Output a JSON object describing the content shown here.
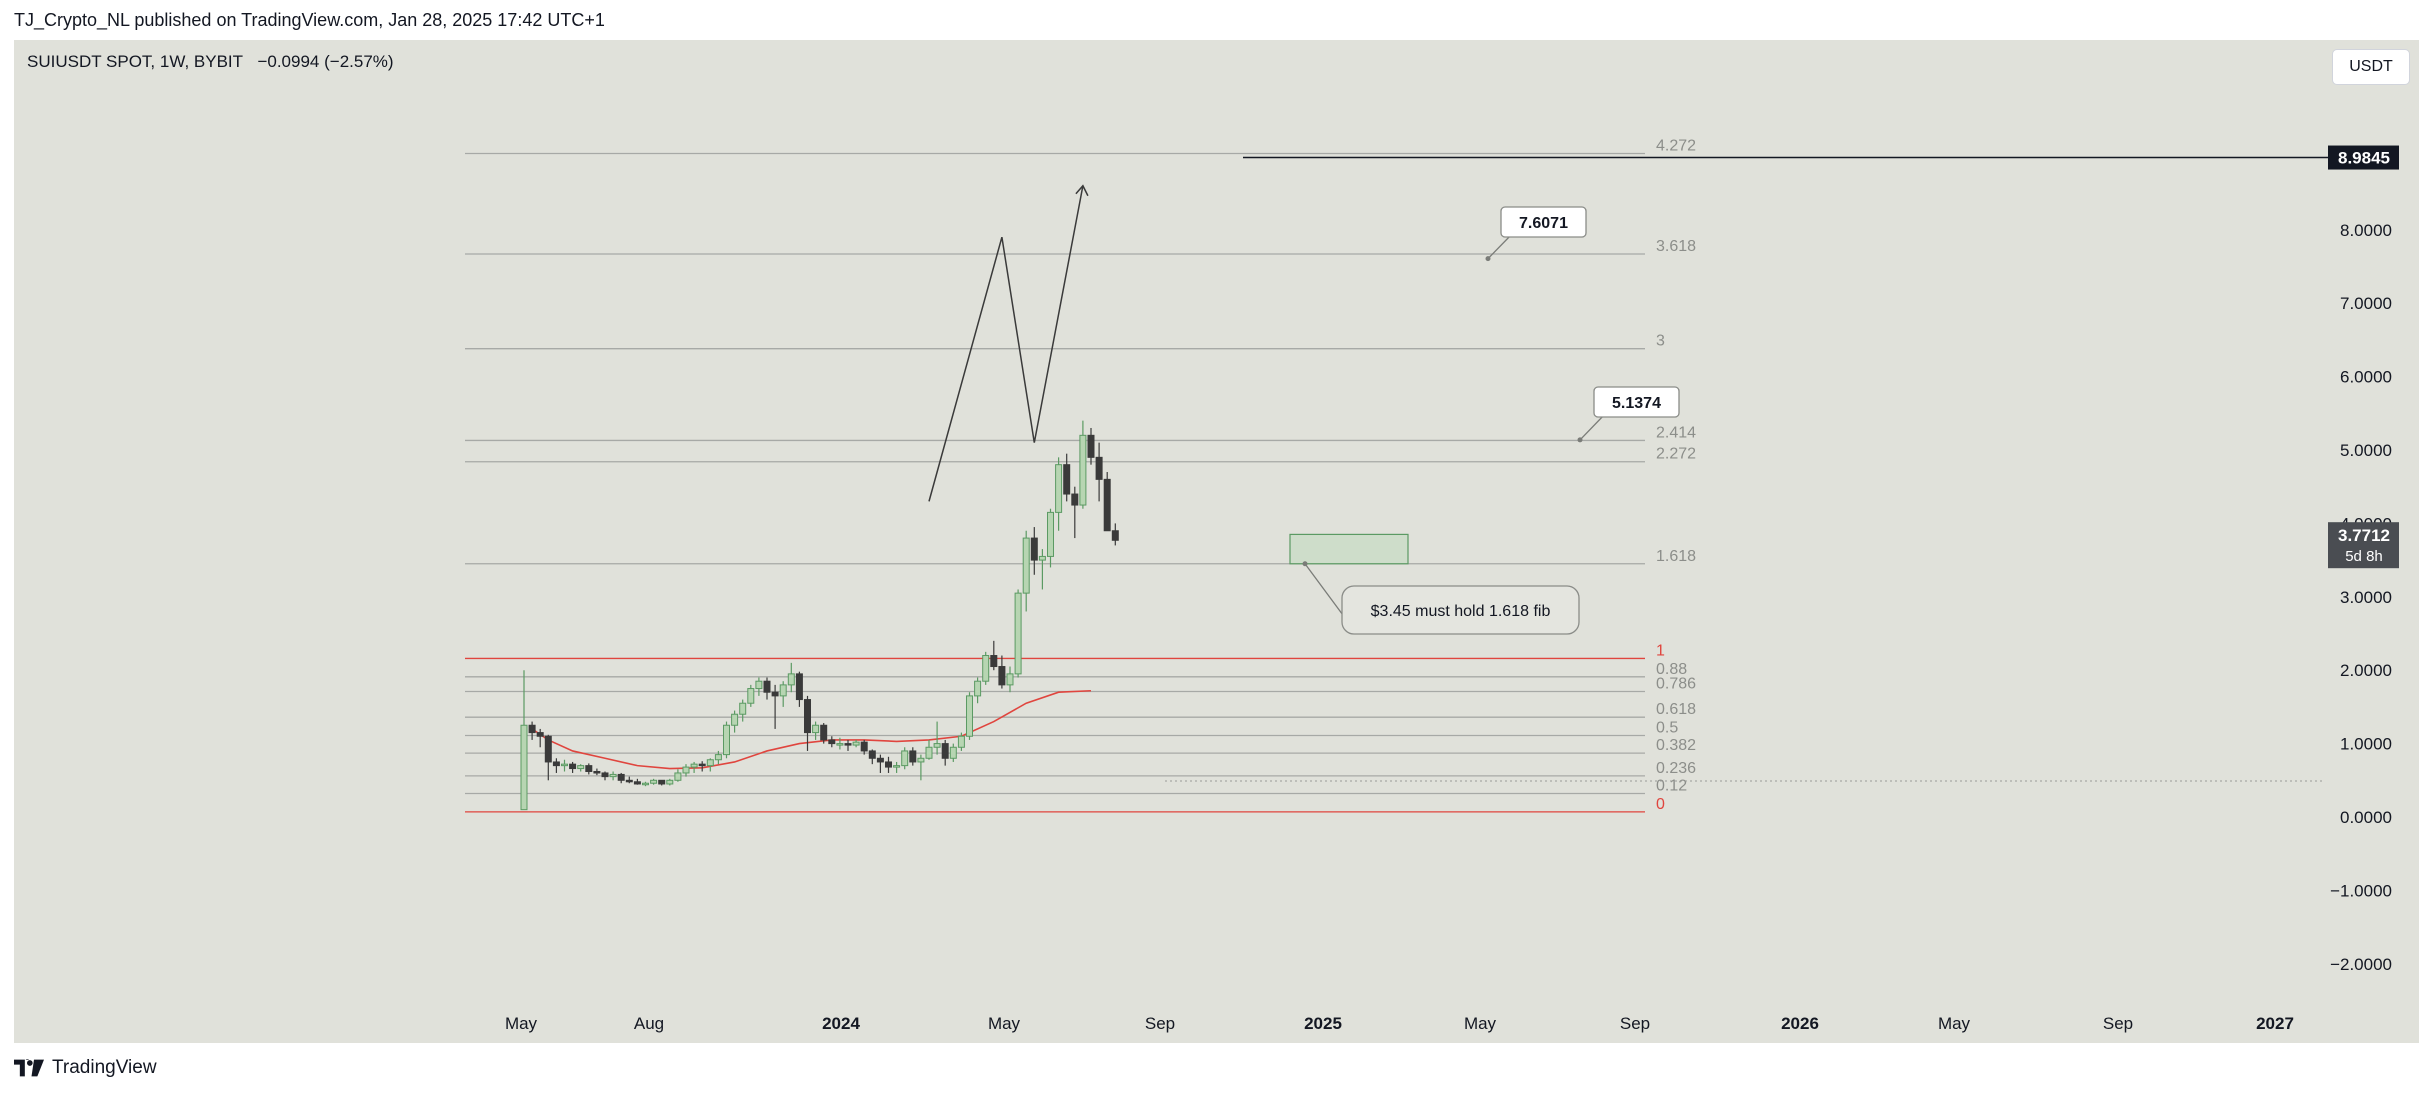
{
  "header": {
    "text": "TJ_Crypto_NL published on TradingView.com, Jan 28, 2025 17:42 UTC+1"
  },
  "symbol": {
    "label": "SUIUSDT SPOT, 1W, BYBIT",
    "change": "−0.0994 (−2.57%)"
  },
  "currency_button": "USDT",
  "footer": {
    "brand": "TradingView"
  },
  "colors": {
    "up": "#5b9a63",
    "up_fill": "#b7d5b2",
    "down": "#3a3a3a",
    "down_fill": "#3a3a3a",
    "ma": "#e0453e",
    "fib": "#a7a9a6",
    "fib_red": "#e0453e",
    "background": "#e0e1da"
  },
  "chart_data": {
    "type": "candlestick",
    "title": "SUIUSDT SPOT, 1W, BYBIT",
    "ylim": [
      -2.5,
      10.5
    ],
    "y_ticks": [
      "8.0000",
      "7.0000",
      "6.0000",
      "5.0000",
      "4.0000",
      "3.0000",
      "2.0000",
      "1.0000",
      "0.0000",
      "−1.0000",
      "−2.0000"
    ],
    "x_ticks": [
      "May",
      "Aug",
      "2024",
      "May",
      "Sep",
      "2025",
      "May",
      "Sep",
      "2026",
      "May",
      "Sep",
      "2027"
    ],
    "fib_levels": [
      {
        "label": "4.272",
        "value": 9.04
      },
      {
        "label": "3.618",
        "value": 7.67
      },
      {
        "label": "3",
        "value": 6.38
      },
      {
        "label": "2.414",
        "value": 5.13
      },
      {
        "label": "2.272",
        "value": 4.84
      },
      {
        "label": "1.618",
        "value": 3.45
      },
      {
        "label": "1",
        "value": 2.16
      },
      {
        "label": "0.88",
        "value": 1.91
      },
      {
        "label": "0.786",
        "value": 1.71
      },
      {
        "label": "0.618",
        "value": 1.36
      },
      {
        "label": "0.5",
        "value": 1.11
      },
      {
        "label": "0.382",
        "value": 0.87
      },
      {
        "label": "0.236",
        "value": 0.56
      },
      {
        "label": "0.12",
        "value": 0.32
      },
      {
        "label": "0",
        "value": 0.07
      }
    ],
    "last_price": {
      "value": 3.7712,
      "label": "3.7712",
      "countdown": "5d 8h"
    },
    "target_line": {
      "value": 8.9845,
      "label": "8.9845"
    },
    "callouts": [
      {
        "label": "7.6071",
        "value": 7.6071
      },
      {
        "label": "5.1374",
        "value": 5.1374
      },
      {
        "label": "$3.45 must hold 1.618 fib",
        "value": 3.45
      }
    ],
    "projection_path": [
      [
        50,
        4.3
      ],
      [
        59,
        7.9
      ],
      [
        63,
        5.1
      ],
      [
        69,
        8.6
      ]
    ],
    "support_zone": [
      3.45,
      3.85
    ],
    "candles": [
      [
        0.1,
        2.0,
        0.1,
        1.25
      ],
      [
        1.25,
        1.3,
        1.05,
        1.15
      ],
      [
        1.15,
        1.2,
        0.95,
        1.1
      ],
      [
        1.1,
        1.12,
        0.5,
        0.75
      ],
      [
        0.75,
        0.8,
        0.6,
        0.7
      ],
      [
        0.7,
        0.78,
        0.62,
        0.72
      ],
      [
        0.72,
        0.75,
        0.6,
        0.66
      ],
      [
        0.66,
        0.72,
        0.62,
        0.7
      ],
      [
        0.7,
        0.73,
        0.58,
        0.62
      ],
      [
        0.62,
        0.66,
        0.57,
        0.6
      ],
      [
        0.6,
        0.62,
        0.5,
        0.55
      ],
      [
        0.55,
        0.62,
        0.5,
        0.58
      ],
      [
        0.58,
        0.6,
        0.46,
        0.5
      ],
      [
        0.5,
        0.55,
        0.46,
        0.48
      ],
      [
        0.48,
        0.52,
        0.44,
        0.45
      ],
      [
        0.45,
        0.48,
        0.42,
        0.46
      ],
      [
        0.46,
        0.52,
        0.44,
        0.5
      ],
      [
        0.5,
        0.5,
        0.43,
        0.45
      ],
      [
        0.45,
        0.52,
        0.43,
        0.5
      ],
      [
        0.5,
        0.65,
        0.48,
        0.6
      ],
      [
        0.6,
        0.72,
        0.55,
        0.68
      ],
      [
        0.68,
        0.75,
        0.6,
        0.72
      ],
      [
        0.72,
        0.76,
        0.62,
        0.7
      ],
      [
        0.7,
        0.8,
        0.62,
        0.78
      ],
      [
        0.78,
        0.9,
        0.72,
        0.85
      ],
      [
        0.85,
        1.3,
        0.8,
        1.25
      ],
      [
        1.25,
        1.45,
        1.15,
        1.4
      ],
      [
        1.4,
        1.6,
        1.3,
        1.55
      ],
      [
        1.55,
        1.8,
        1.5,
        1.75
      ],
      [
        1.75,
        1.9,
        1.65,
        1.85
      ],
      [
        1.85,
        1.9,
        1.6,
        1.7
      ],
      [
        1.7,
        1.8,
        1.2,
        1.65
      ],
      [
        1.65,
        1.85,
        1.5,
        1.8
      ],
      [
        1.8,
        2.1,
        1.7,
        1.95
      ],
      [
        1.95,
        1.98,
        1.5,
        1.6
      ],
      [
        1.6,
        1.65,
        0.9,
        1.15
      ],
      [
        1.15,
        1.3,
        1.05,
        1.25
      ],
      [
        1.25,
        1.28,
        1.0,
        1.05
      ],
      [
        1.05,
        1.1,
        0.95,
        1.0
      ],
      [
        1.0,
        1.08,
        0.92,
        1.0
      ],
      [
        1.0,
        1.05,
        0.9,
        0.98
      ],
      [
        0.98,
        1.05,
        0.95,
        1.02
      ],
      [
        1.02,
        1.05,
        0.85,
        0.9
      ],
      [
        0.9,
        0.92,
        0.72,
        0.8
      ],
      [
        0.8,
        0.85,
        0.6,
        0.75
      ],
      [
        0.75,
        0.82,
        0.6,
        0.68
      ],
      [
        0.68,
        0.75,
        0.6,
        0.7
      ],
      [
        0.7,
        0.95,
        0.65,
        0.9
      ],
      [
        0.9,
        0.95,
        0.7,
        0.75
      ],
      [
        0.75,
        0.85,
        0.5,
        0.8
      ],
      [
        0.8,
        1.05,
        0.78,
        0.95
      ],
      [
        0.95,
        1.3,
        0.85,
        1.0
      ],
      [
        1.0,
        1.05,
        0.7,
        0.8
      ],
      [
        0.8,
        1.0,
        0.75,
        0.95
      ],
      [
        0.95,
        1.15,
        0.9,
        1.1
      ],
      [
        1.1,
        1.7,
        1.05,
        1.65
      ],
      [
        1.65,
        1.9,
        1.55,
        1.85
      ],
      [
        1.85,
        2.25,
        1.8,
        2.2
      ],
      [
        2.2,
        2.4,
        2.0,
        2.05
      ],
      [
        2.05,
        2.2,
        1.75,
        1.8
      ],
      [
        1.8,
        2.05,
        1.7,
        1.95
      ],
      [
        1.95,
        3.1,
        1.9,
        3.05
      ],
      [
        3.05,
        3.9,
        2.8,
        3.8
      ],
      [
        3.8,
        3.95,
        3.3,
        3.5
      ],
      [
        3.5,
        3.65,
        3.1,
        3.55
      ],
      [
        3.55,
        4.2,
        3.4,
        4.15
      ],
      [
        4.15,
        4.9,
        3.9,
        4.8
      ],
      [
        4.8,
        4.95,
        4.3,
        4.4
      ],
      [
        4.4,
        4.5,
        3.8,
        4.25
      ],
      [
        4.25,
        5.4,
        4.2,
        5.2
      ],
      [
        5.2,
        5.3,
        4.8,
        4.9
      ],
      [
        4.9,
        5.1,
        4.3,
        4.6
      ],
      [
        4.6,
        4.7,
        3.9,
        3.9
      ],
      [
        3.9,
        4.0,
        3.7,
        3.77
      ]
    ],
    "ma_series": [
      [
        1,
        1.2
      ],
      [
        3,
        1.05
      ],
      [
        6,
        0.9
      ],
      [
        10,
        0.8
      ],
      [
        14,
        0.7
      ],
      [
        18,
        0.66
      ],
      [
        22,
        0.67
      ],
      [
        26,
        0.75
      ],
      [
        30,
        0.9
      ],
      [
        34,
        1.0
      ],
      [
        38,
        1.05
      ],
      [
        42,
        1.05
      ],
      [
        46,
        1.03
      ],
      [
        50,
        1.05
      ],
      [
        54,
        1.1
      ],
      [
        58,
        1.3
      ],
      [
        62,
        1.55
      ],
      [
        66,
        1.7
      ],
      [
        70,
        1.72
      ]
    ]
  }
}
